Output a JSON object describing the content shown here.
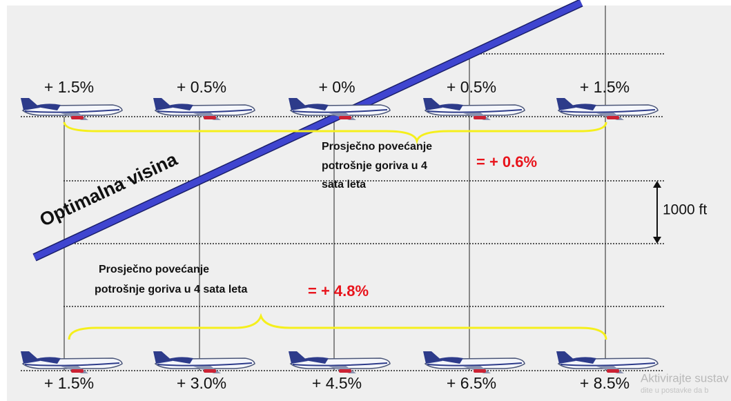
{
  "top_labels": [
    "+ 1.5%",
    "+ 0.5%",
    "+ 0%",
    "+ 0.5%",
    "+ 1.5%"
  ],
  "bottom_labels": [
    "+ 1.5%",
    "+ 3.0%",
    "+ 4.5%",
    "+ 6.5%",
    "+ 8.5%"
  ],
  "optimal_altitude": "Optimalna visina",
  "top_note": {
    "lines": [
      "Prosječno povećanje",
      "potrošnje goriva u 4",
      "sata leta"
    ],
    "result": "= + 0.6%"
  },
  "bottom_note": {
    "lines": [
      "Prosječno povećanje",
      "potrošnje goriva u 4 sata leta"
    ],
    "result": "= + 4.8%"
  },
  "altitude_step": "1000 ft",
  "watermark": [
    "Aktivirajte sustav",
    "dite u postavke da b"
  ]
}
